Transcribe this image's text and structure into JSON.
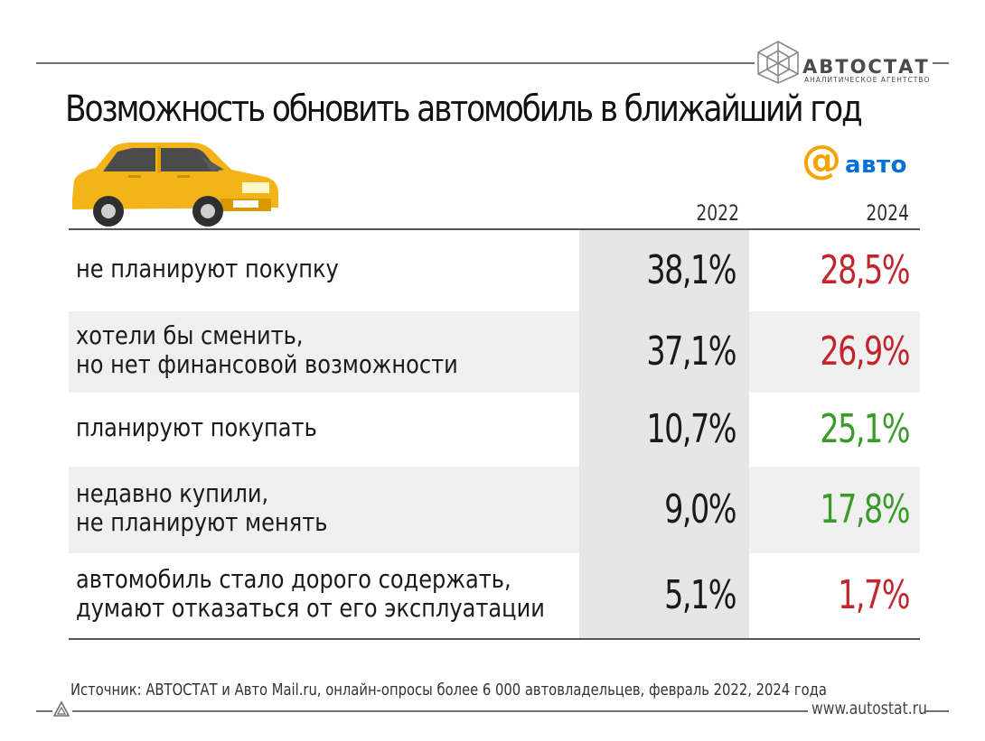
{
  "logo": {
    "name": "АВТОСТАТ",
    "subtitle": "АНАЛИТИЧЕСКОЕ АГЕНТСТВО"
  },
  "partner_logo": {
    "symbol": "@",
    "text": "авто"
  },
  "chart_data": {
    "type": "table",
    "title": "Возможность обновить автомобиль в ближайший год",
    "columns": [
      "2022",
      "2024"
    ],
    "rows": [
      {
        "label_lines": [
          "не планируют покупку"
        ],
        "v2022": "38,1%",
        "v2024": "28,5%",
        "v2024_color": "#c0262c",
        "shaded": false
      },
      {
        "label_lines": [
          "хотели бы сменить,",
          "но нет финансовой возможности"
        ],
        "v2022": "37,1%",
        "v2024": "26,9%",
        "v2024_color": "#c0262c",
        "shaded": true
      },
      {
        "label_lines": [
          "планируют покупать"
        ],
        "v2022": "10,7%",
        "v2024": "25,1%",
        "v2024_color": "#3a9a2a",
        "shaded": false
      },
      {
        "label_lines": [
          "недавно купили,",
          "не планируют менять"
        ],
        "v2022": "9,0%",
        "v2024": "17,8%",
        "v2024_color": "#3a9a2a",
        "shaded": true
      },
      {
        "label_lines": [
          "автомобиль стало дорого содержать,",
          "думают отказаться от его эксплуатации"
        ],
        "v2022": "5,1%",
        "v2024": "1,7%",
        "v2024_color": "#c0262c",
        "shaded": false
      }
    ]
  },
  "source": "Источник: АВТОСТАТ и Авто Mail.ru, онлайн-опросы более 6 000 автовладельцев, февраль 2022, 2024 года",
  "url": "www.autostat.ru"
}
